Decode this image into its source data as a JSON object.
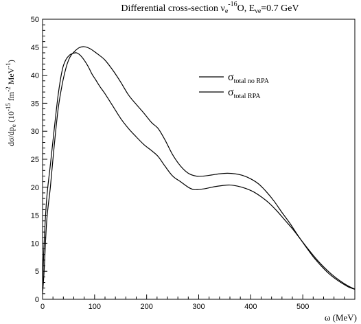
{
  "chart_data": {
    "type": "line",
    "title": {
      "main": "Differential cross-section ν",
      "sub1": "e",
      "sup1": "-16",
      "mid": "O, E",
      "sub2": "νe",
      "tail": "=0.7 GeV"
    },
    "xlabel": "ω (MeV)",
    "ylabel": {
      "a": "dσ/dp",
      "sub": "e",
      "b": " (10",
      "sup1": "-15",
      "c": " fm",
      "sup2": "-2",
      "d": " MeV",
      "sup3": "-1",
      "e": ")"
    },
    "xlim": [
      0,
      600
    ],
    "ylim": [
      0,
      50
    ],
    "xticks": [
      0,
      100,
      200,
      300,
      400,
      500,
      600
    ],
    "yticks": [
      0,
      5,
      10,
      15,
      20,
      25,
      30,
      35,
      40,
      45,
      50
    ],
    "grid": false,
    "legend_position": "top-right",
    "series": [
      {
        "name": "σ",
        "name_sub": "total no RPA",
        "x": [
          0,
          3,
          8,
          15,
          22,
          30,
          38,
          45,
          50,
          55,
          62,
          70,
          78,
          85,
          92,
          100,
          110,
          120,
          135,
          150,
          165,
          180,
          195,
          210,
          222,
          235,
          250,
          265,
          280,
          295,
          310,
          325,
          340,
          355,
          370,
          385,
          400,
          415,
          430,
          445,
          460,
          475,
          490,
          505,
          520,
          535,
          550,
          565,
          580,
          590,
          600
        ],
        "values": [
          1,
          5,
          14,
          20,
          27,
          34,
          38.5,
          41.3,
          42.7,
          43.6,
          44.3,
          44.9,
          45.1,
          45.0,
          44.7,
          44.2,
          43.5,
          42.7,
          40.9,
          38.8,
          36.5,
          34.8,
          33.2,
          31.5,
          30.5,
          28.5,
          25.8,
          23.8,
          22.5,
          22.0,
          22.0,
          22.2,
          22.4,
          22.5,
          22.4,
          22.1,
          21.5,
          20.6,
          19.2,
          17.5,
          15.5,
          13.6,
          11.5,
          9.5,
          7.6,
          6.0,
          4.6,
          3.5,
          2.6,
          2.1,
          1.8
        ]
      },
      {
        "name": "σ",
        "name_sub": "total RPA",
        "x": [
          0,
          3,
          8,
          15,
          22,
          30,
          38,
          45,
          52,
          58,
          65,
          72,
          80,
          88,
          95,
          102,
          110,
          120,
          135,
          150,
          165,
          180,
          195,
          210,
          222,
          235,
          250,
          265,
          280,
          290,
          300,
          315,
          330,
          345,
          360,
          375,
          390,
          405,
          420,
          435,
          450,
          465,
          480,
          495,
          510,
          525,
          540,
          555,
          570,
          585,
          600
        ],
        "values": [
          2,
          10,
          18,
          24,
          30,
          36.5,
          41,
          42.8,
          43.6,
          43.9,
          44.0,
          43.6,
          42.7,
          41.5,
          40.2,
          39.2,
          38.0,
          36.7,
          34.5,
          32.3,
          30.5,
          29.0,
          27.6,
          26.5,
          25.5,
          23.8,
          22.0,
          21.0,
          20.0,
          19.6,
          19.6,
          19.8,
          20.1,
          20.3,
          20.4,
          20.2,
          19.8,
          19.2,
          18.3,
          17.2,
          15.8,
          14.2,
          12.6,
          10.8,
          9.0,
          7.3,
          5.8,
          4.5,
          3.4,
          2.5,
          1.8
        ]
      }
    ]
  }
}
